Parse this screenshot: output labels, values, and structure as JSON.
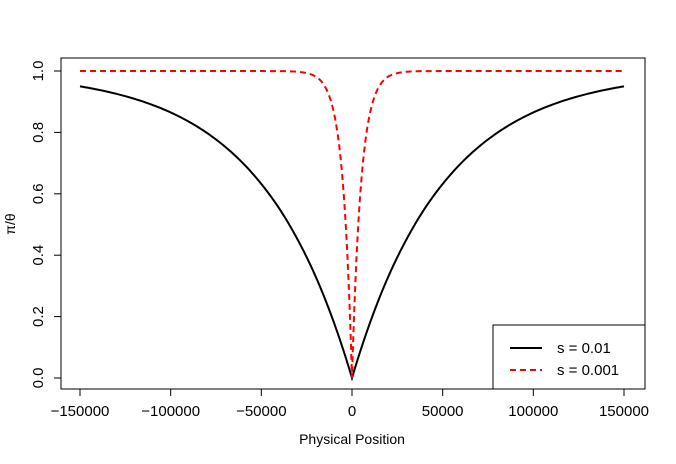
{
  "chart_data": {
    "type": "line",
    "title": "",
    "xlabel": "Physical Position",
    "ylabel": "π/θ",
    "xlim": [
      -150000,
      150000
    ],
    "ylim": [
      0,
      1
    ],
    "x_ticks": [
      -150000,
      -100000,
      -50000,
      0,
      50000,
      100000,
      150000
    ],
    "x_tick_labels": [
      "−150000",
      "−100000",
      "−50000",
      "0",
      "50000",
      "100000",
      "150000"
    ],
    "y_ticks": [
      0,
      0.2,
      0.4,
      0.6,
      0.8,
      1
    ],
    "y_tick_labels": [
      "0.0",
      "0.2",
      "0.4",
      "0.6",
      "0.8",
      "1.0"
    ],
    "grid": false,
    "legend_position": "bottom-right",
    "series": [
      {
        "name": "s =  0.01",
        "color": "#000000",
        "style": "solid",
        "x": [
          -150000,
          -125000,
          -100000,
          -75000,
          -50000,
          -40000,
          -30000,
          -20000,
          -10000,
          -5000,
          0,
          5000,
          10000,
          20000,
          30000,
          40000,
          50000,
          75000,
          100000,
          125000,
          150000
        ],
        "y": [
          0.95,
          0.918,
          0.865,
          0.777,
          0.632,
          0.551,
          0.451,
          0.33,
          0.181,
          0.095,
          0.0,
          0.095,
          0.181,
          0.33,
          0.451,
          0.551,
          0.632,
          0.777,
          0.865,
          0.918,
          0.95
        ]
      },
      {
        "name": "s =  0.001",
        "color": "#ff0000",
        "style": "dashed",
        "x": [
          -150000,
          -40000,
          -30000,
          -25000,
          -20000,
          -15000,
          -10000,
          -7500,
          -5000,
          -2500,
          -1000,
          0,
          1000,
          2500,
          5000,
          7500,
          10000,
          15000,
          20000,
          25000,
          30000,
          40000,
          150000
        ],
        "y": [
          1.0,
          0.9997,
          0.9975,
          0.993,
          0.982,
          0.95,
          0.865,
          0.777,
          0.632,
          0.394,
          0.181,
          0.0,
          0.181,
          0.394,
          0.632,
          0.777,
          0.865,
          0.95,
          0.982,
          0.993,
          0.9975,
          0.9997,
          1.0
        ]
      }
    ]
  }
}
